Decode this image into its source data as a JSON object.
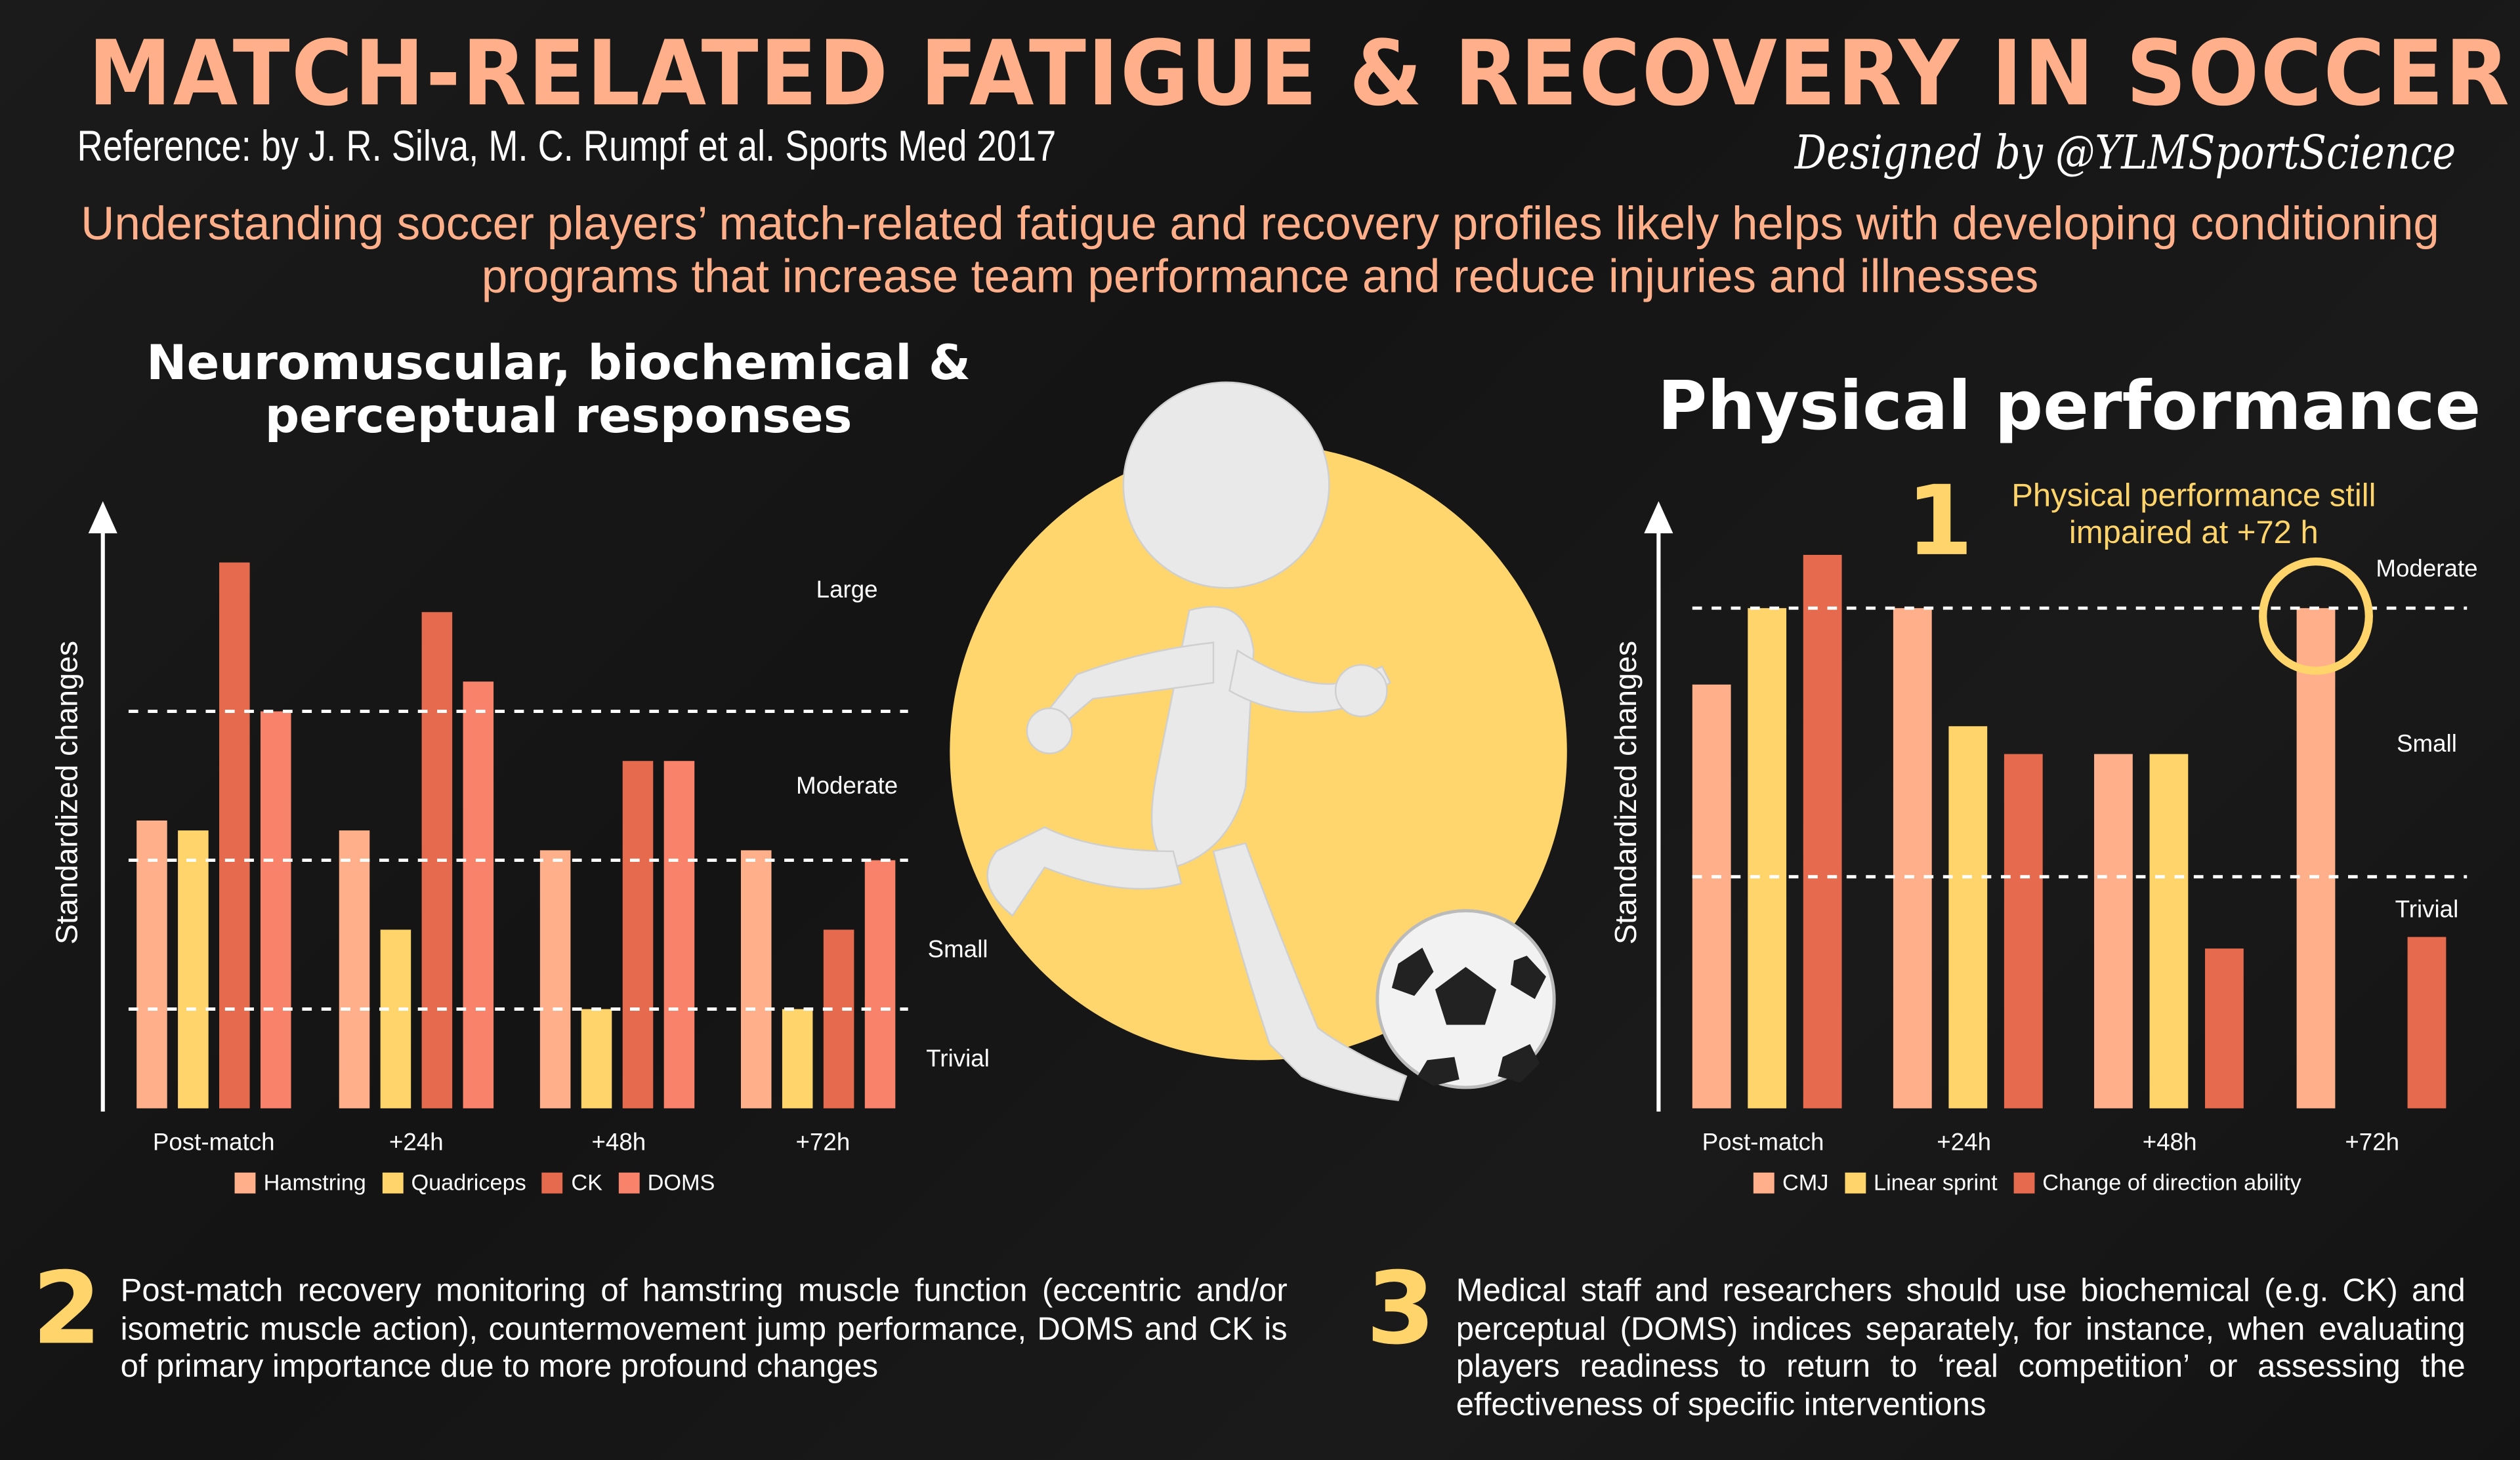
{
  "header": {
    "title": "MATCH-RELATED FATIGUE & RECOVERY IN SOCCER",
    "reference": "Reference: by  J. R. Silva, M. C. Rumpf et al. Sports Med 2017",
    "designer": "Designed by @YLMSportScience",
    "subtitle": "Understanding soccer players’ match-related fatigue and recovery profiles likely helps with developing conditioning programs that increase team performance and reduce injuries and illnesses"
  },
  "colors": {
    "background": "#151515",
    "title": "#FFB08A",
    "accent_yellow": "#FFD56B",
    "hamstring_cmj": "#FFB08A",
    "quadriceps_sprint": "#FFD56B",
    "ck_cod": "#E66B4E",
    "doms": "#F9826A"
  },
  "callout": {
    "number": "1",
    "text": "Physical performance still impaired at +72 h"
  },
  "notes": [
    {
      "number": "2",
      "text": "Post-match recovery monitoring of hamstring muscle function (eccentric and/or isometric muscle action), countermovement jump performance, DOMS and CK is of primary importance due to more profound changes"
    },
    {
      "number": "3",
      "text": "Medical staff and researchers should use biochemical (e.g. CK) and perceptual (DOMS) indices separately, for instance, when evaluating players readiness to return to ‘real competition’ or assessing the effectiveness of specific interventions"
    }
  ],
  "illustration": {
    "figure": "stick-figure-kicking-ball-icon",
    "ball": "soccer-ball-icon"
  },
  "chart_data": [
    {
      "type": "bar",
      "title": "Neuromuscular, biochemical & perceptual responses",
      "ylabel": "Standardized changes",
      "categories": [
        "Post-match",
        "+24h",
        "+48h",
        "+72h"
      ],
      "ylim": [
        0,
        5.6
      ],
      "grid": false,
      "legend": "bottom",
      "thresholds": [
        {
          "value": 1,
          "label": "Trivial"
        },
        {
          "value": 2.5,
          "label": "Small"
        },
        {
          "value": 4,
          "label": "Moderate"
        }
      ],
      "threshold_region_labels": [
        "Trivial",
        "Small",
        "Moderate",
        "Large"
      ],
      "series": [
        {
          "name": "Hamstring",
          "color": "#FFB08A",
          "values": [
            2.9,
            2.8,
            2.6,
            2.6
          ]
        },
        {
          "name": "Quadriceps",
          "color": "#FFD56B",
          "values": [
            2.8,
            1.8,
            1.0,
            1.0
          ]
        },
        {
          "name": "CK",
          "color": "#E66B4E",
          "values": [
            5.5,
            5.0,
            3.5,
            1.8
          ]
        },
        {
          "name": "DOMS",
          "color": "#F9826A",
          "values": [
            4.0,
            4.3,
            3.5,
            2.5
          ]
        }
      ]
    },
    {
      "type": "bar",
      "title": "Physical performance",
      "ylabel": "Standardized changes",
      "categories": [
        "Post-match",
        "+24h",
        "+48h",
        "+72h"
      ],
      "ylim": [
        0,
        2.4
      ],
      "grid": false,
      "legend": "bottom",
      "thresholds": [
        {
          "value": 1,
          "label": "Trivial"
        },
        {
          "value": 2.16,
          "label": "Small"
        }
      ],
      "threshold_region_labels": [
        "Trivial",
        "Small",
        "Moderate"
      ],
      "highlight": {
        "series": "CMJ",
        "category": "+72h"
      },
      "series": [
        {
          "name": "CMJ",
          "color": "#FFB08A",
          "values": [
            1.83,
            2.16,
            1.53,
            2.16
          ]
        },
        {
          "name": "Linear sprint",
          "color": "#FFD56B",
          "values": [
            2.16,
            1.65,
            1.53,
            null
          ]
        },
        {
          "name": "Change of direction ability",
          "color": "#E66B4E",
          "values": [
            2.39,
            1.53,
            0.69,
            0.74
          ]
        }
      ]
    }
  ]
}
